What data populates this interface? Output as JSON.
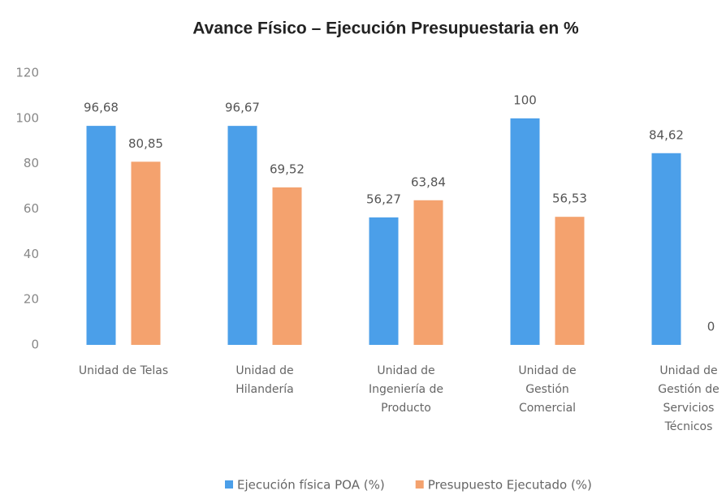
{
  "chart_data": {
    "type": "bar",
    "title": "Avance Físico – Ejecución Presupuestaria en %",
    "categories": [
      "Unidad de Telas",
      "Unidad de\nHilandería",
      "Unidad de\nIngeniería de\nProducto",
      "Unidad de\nGestión\nComercial",
      "Unidad de\nGestión de\nServicios\nTécnicos"
    ],
    "series": [
      {
        "name": "Ejecución física POA (%)",
        "color": "#4b9fe9",
        "values": [
          96.68,
          96.67,
          56.27,
          100,
          84.62
        ],
        "value_labels": [
          "96,68",
          "96,67",
          "56,27",
          "100",
          "84,62"
        ]
      },
      {
        "name": "Presupuesto Ejecutado (%)",
        "color": "#f4a26e",
        "values": [
          80.85,
          69.52,
          63.84,
          56.53,
          0
        ],
        "value_labels": [
          "80,85",
          "69,52",
          "63,84",
          "56,53",
          "0"
        ]
      }
    ],
    "ylim": [
      0,
      120
    ],
    "yticks": [
      0,
      20,
      40,
      60,
      80,
      100,
      120
    ],
    "grid": false,
    "legend": "bottom"
  }
}
